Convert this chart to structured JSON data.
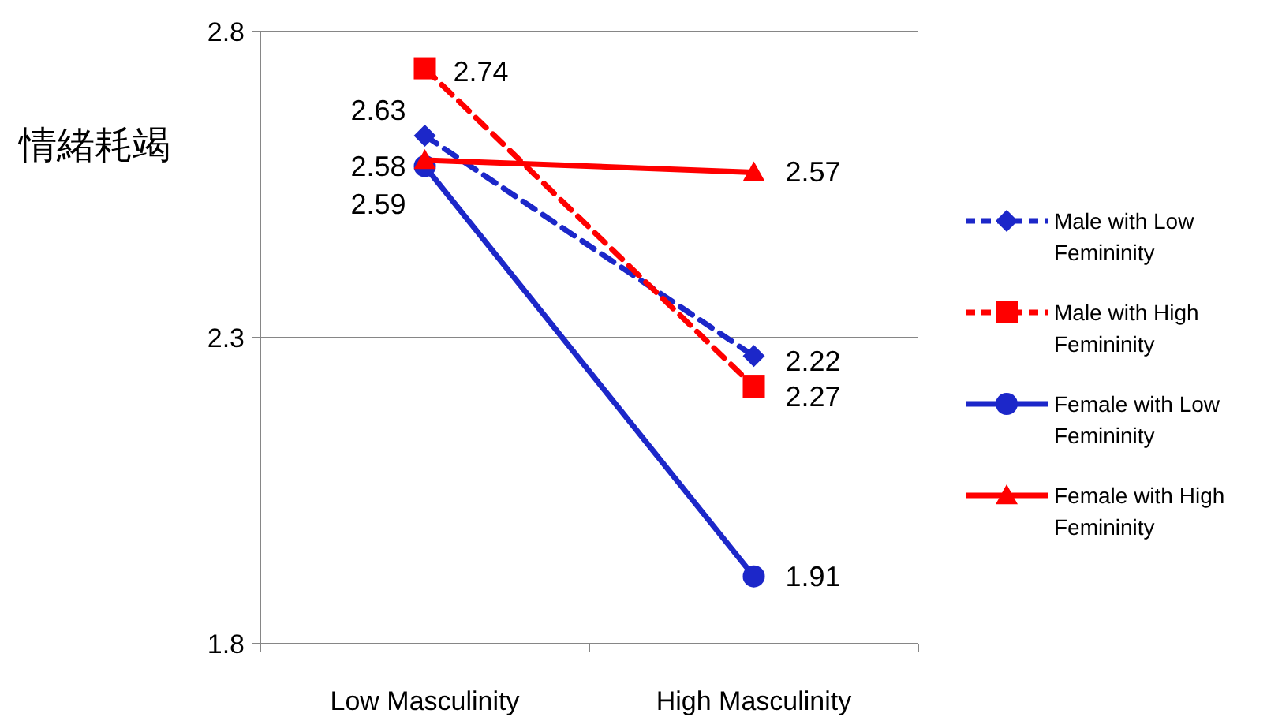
{
  "chart_data": {
    "type": "line",
    "ylabel": "情緒耗竭",
    "categories": [
      "Low Masculinity",
      "High Masculinity"
    ],
    "ylim": [
      1.8,
      2.8
    ],
    "yticks": [
      1.8,
      2.3,
      2.8
    ],
    "grid": "y",
    "legend": "right",
    "data_labels": true,
    "series": [
      {
        "name": "Male with Low Femininity",
        "color": "#1c27c9",
        "values": [
          2.63,
          2.27
        ],
        "marker": "diamond",
        "line_style": "dashed"
      },
      {
        "name": "Male with High Femininity",
        "color": "#ff0000",
        "values": [
          2.74,
          2.22
        ],
        "marker": "square",
        "line_style": "dashed"
      },
      {
        "name": "Female with Low Femininity",
        "color": "#1c27c9",
        "values": [
          2.58,
          1.91
        ],
        "marker": "circle",
        "line_style": "solid"
      },
      {
        "name": "Female with High Femininity",
        "color": "#ff0000",
        "values": [
          2.59,
          2.57
        ],
        "marker": "triangle",
        "line_style": "solid"
      }
    ]
  }
}
